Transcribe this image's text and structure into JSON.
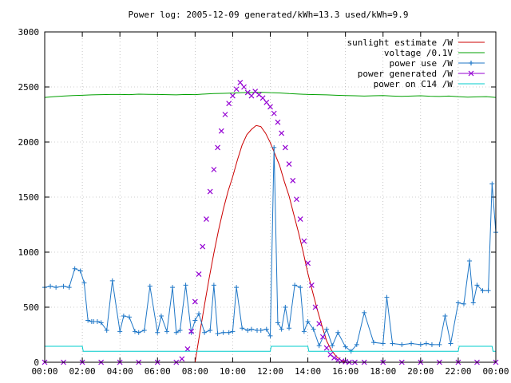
{
  "chart_data": {
    "type": "line",
    "title": "Power log: 2005-12-09 generated/kWh=13.3 used/kWh=9.9",
    "xlabel": "",
    "ylabel": "",
    "xlim": [
      0,
      24
    ],
    "ylim": [
      0,
      3000
    ],
    "x_tick_labels": [
      "00:00",
      "02:00",
      "04:00",
      "06:00",
      "08:00",
      "10:00",
      "12:00",
      "14:00",
      "16:00",
      "18:00",
      "20:00",
      "22:00",
      "00:00"
    ],
    "y_tick_labels": [
      "0",
      "500",
      "1000",
      "1500",
      "2000",
      "2500",
      "3000"
    ],
    "y_ticks": [
      0,
      500,
      1000,
      1500,
      2000,
      2500,
      3000
    ],
    "grid": true,
    "legend_position": "top-right",
    "series": [
      {
        "name": "sunlight estimate /W",
        "style": "line",
        "color": "#cc0000",
        "x": [
          8.0,
          8.25,
          8.5,
          8.75,
          9.0,
          9.25,
          9.5,
          9.75,
          10.0,
          10.25,
          10.5,
          10.75,
          11.0,
          11.25,
          11.5,
          11.75,
          12.0,
          12.25,
          12.5,
          12.75,
          13.0,
          13.25,
          13.5,
          13.75,
          14.0,
          14.25,
          14.5,
          14.75,
          15.0,
          15.25,
          15.5,
          15.75,
          16.0
        ],
        "values": [
          0,
          264,
          520,
          764,
          992,
          1201,
          1388,
          1551,
          1685,
          1836,
          1972,
          2066,
          2115,
          2150,
          2140,
          2080,
          1995,
          1890,
          1785,
          1640,
          1510,
          1343,
          1180,
          1001,
          808,
          640,
          479,
          330,
          193,
          110,
          55,
          20,
          0
        ]
      },
      {
        "name": "voltage /0.1V",
        "style": "line",
        "color": "#00a000",
        "x": [
          0.0,
          0.5,
          1.0,
          1.5,
          2.0,
          2.5,
          3.0,
          3.5,
          4.0,
          4.5,
          5.0,
          5.5,
          6.0,
          6.5,
          7.0,
          7.5,
          8.0,
          8.5,
          9.0,
          9.5,
          10.0,
          10.5,
          11.0,
          11.5,
          12.0,
          12.5,
          13.0,
          13.5,
          14.0,
          14.5,
          15.0,
          15.5,
          16.0,
          16.5,
          17.0,
          17.5,
          18.0,
          18.5,
          19.0,
          19.5,
          20.0,
          20.5,
          21.0,
          21.5,
          22.0,
          22.5,
          23.0,
          23.5,
          24.0
        ],
        "values": [
          2405,
          2412,
          2418,
          2422,
          2425,
          2428,
          2430,
          2432,
          2432,
          2430,
          2435,
          2433,
          2432,
          2430,
          2428,
          2432,
          2430,
          2436,
          2440,
          2442,
          2445,
          2448,
          2450,
          2452,
          2448,
          2446,
          2440,
          2436,
          2432,
          2430,
          2428,
          2425,
          2422,
          2420,
          2418,
          2420,
          2422,
          2418,
          2415,
          2418,
          2420,
          2416,
          2414,
          2418,
          2412,
          2408,
          2410,
          2412,
          2405
        ]
      },
      {
        "name": "power use /W",
        "style": "linespoints",
        "marker": "plus",
        "color": "#1f77c7",
        "x": [
          0.0,
          0.3,
          0.6,
          1.0,
          1.3,
          1.6,
          1.9,
          2.1,
          2.3,
          2.5,
          2.6,
          2.8,
          3.0,
          3.3,
          3.6,
          4.0,
          4.2,
          4.5,
          4.8,
          5.0,
          5.3,
          5.6,
          6.0,
          6.2,
          6.5,
          6.8,
          7.0,
          7.2,
          7.5,
          7.8,
          8.0,
          8.2,
          8.5,
          8.8,
          9.0,
          9.2,
          9.5,
          9.8,
          10.0,
          10.2,
          10.5,
          10.8,
          11.0,
          11.3,
          11.5,
          11.8,
          12.0,
          12.2,
          12.4,
          12.6,
          12.8,
          13.0,
          13.3,
          13.6,
          13.8,
          14.0,
          14.3,
          14.6,
          15.0,
          15.3,
          15.6,
          16.0,
          16.3,
          16.6,
          17.0,
          17.5,
          18.0,
          18.2,
          18.5,
          19.0,
          19.5,
          20.0,
          20.3,
          20.6,
          21.0,
          21.3,
          21.6,
          22.0,
          22.3,
          22.6,
          22.8,
          23.0,
          23.3,
          23.6,
          23.8,
          24.0
        ],
        "values": [
          680,
          690,
          680,
          690,
          680,
          850,
          830,
          720,
          380,
          370,
          370,
          370,
          360,
          290,
          740,
          280,
          420,
          410,
          280,
          270,
          290,
          690,
          270,
          420,
          280,
          680,
          270,
          290,
          700,
          270,
          380,
          440,
          270,
          290,
          700,
          260,
          270,
          270,
          280,
          680,
          310,
          290,
          300,
          290,
          290,
          300,
          240,
          1950,
          360,
          300,
          500,
          310,
          700,
          680,
          280,
          370,
          300,
          150,
          300,
          150,
          270,
          140,
          100,
          160,
          450,
          180,
          170,
          590,
          170,
          160,
          170,
          160,
          170,
          160,
          160,
          420,
          170,
          540,
          530,
          920,
          540,
          700,
          650,
          650,
          1620,
          1180
        ]
      },
      {
        "name": "power generated /W",
        "style": "points",
        "marker": "cross",
        "color": "#9400d3",
        "x": [
          0.0,
          1.0,
          2.0,
          3.0,
          4.0,
          5.0,
          6.0,
          7.0,
          7.3,
          7.6,
          7.8,
          8.0,
          8.2,
          8.4,
          8.6,
          8.8,
          9.0,
          9.2,
          9.4,
          9.6,
          9.8,
          10.0,
          10.2,
          10.4,
          10.6,
          10.8,
          11.0,
          11.2,
          11.4,
          11.6,
          11.8,
          12.0,
          12.2,
          12.4,
          12.6,
          12.8,
          13.0,
          13.2,
          13.4,
          13.6,
          13.8,
          14.0,
          14.2,
          14.4,
          14.6,
          14.8,
          15.0,
          15.2,
          15.4,
          15.6,
          15.8,
          16.0,
          16.2,
          16.5,
          17.0,
          18.0,
          19.0,
          20.0,
          21.0,
          22.0,
          23.0,
          24.0
        ],
        "values": [
          0,
          0,
          0,
          0,
          0,
          0,
          0,
          0,
          30,
          120,
          280,
          550,
          800,
          1050,
          1300,
          1550,
          1750,
          1950,
          2100,
          2250,
          2350,
          2420,
          2480,
          2540,
          2500,
          2450,
          2420,
          2460,
          2430,
          2400,
          2360,
          2320,
          2260,
          2180,
          2080,
          1950,
          1800,
          1650,
          1480,
          1300,
          1100,
          900,
          700,
          500,
          350,
          230,
          130,
          70,
          40,
          20,
          10,
          5,
          0,
          0,
          0,
          0,
          0,
          0,
          0,
          0,
          0,
          0
        ]
      },
      {
        "name": "power on C14 /W",
        "style": "line",
        "color": "#00cccc",
        "x": [
          0.0,
          2.0,
          2.05,
          12.0,
          12.05,
          14.0,
          14.05,
          22.0,
          22.05,
          23.8,
          23.85,
          24.0
        ],
        "values": [
          145,
          145,
          100,
          100,
          145,
          145,
          100,
          100,
          145,
          145,
          100,
          100
        ]
      }
    ]
  }
}
